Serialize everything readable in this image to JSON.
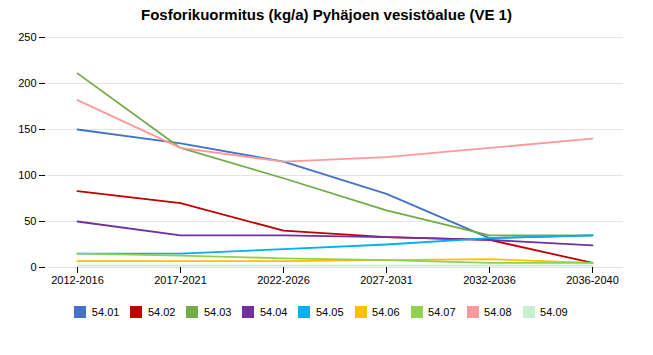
{
  "chart_data": {
    "type": "line",
    "title": "Fosforikuormitus (kg/a) Pyhäjoen vesistöalue (VE 1)",
    "categories": [
      "2012-2016",
      "2017-2021",
      "2022-2026",
      "2027-2031",
      "2032-2036",
      "2036-2040"
    ],
    "series": [
      {
        "name": "54.01",
        "color": "#4472C4",
        "values": [
          150,
          135,
          115,
          80,
          32,
          35
        ]
      },
      {
        "name": "54.02",
        "color": "#C00000",
        "values": [
          83,
          70,
          40,
          33,
          30,
          5
        ]
      },
      {
        "name": "54.03",
        "color": "#70AD47",
        "values": [
          211,
          130,
          97,
          62,
          35,
          35
        ]
      },
      {
        "name": "54.04",
        "color": "#7030A0",
        "values": [
          50,
          35,
          35,
          33,
          30,
          24
        ]
      },
      {
        "name": "54.05",
        "color": "#00B0F0",
        "values": [
          15,
          15,
          20,
          25,
          32,
          35
        ]
      },
      {
        "name": "54.06",
        "color": "#FFC000",
        "values": [
          7,
          7,
          7,
          8,
          9,
          5
        ]
      },
      {
        "name": "54.07",
        "color": "#92D050",
        "values": [
          15,
          13,
          10,
          8,
          5,
          5
        ]
      },
      {
        "name": "54.08",
        "color": "#FF9999",
        "values": [
          182,
          130,
          115,
          120,
          130,
          140
        ]
      },
      {
        "name": "54.09",
        "color": "#C6EFCE",
        "values": [
          2,
          2,
          2,
          2,
          2,
          2
        ]
      }
    ],
    "ylim": [
      0,
      250
    ],
    "yticks": [
      0,
      50,
      100,
      150,
      200,
      250
    ],
    "grid": true,
    "legend": "bottom"
  }
}
